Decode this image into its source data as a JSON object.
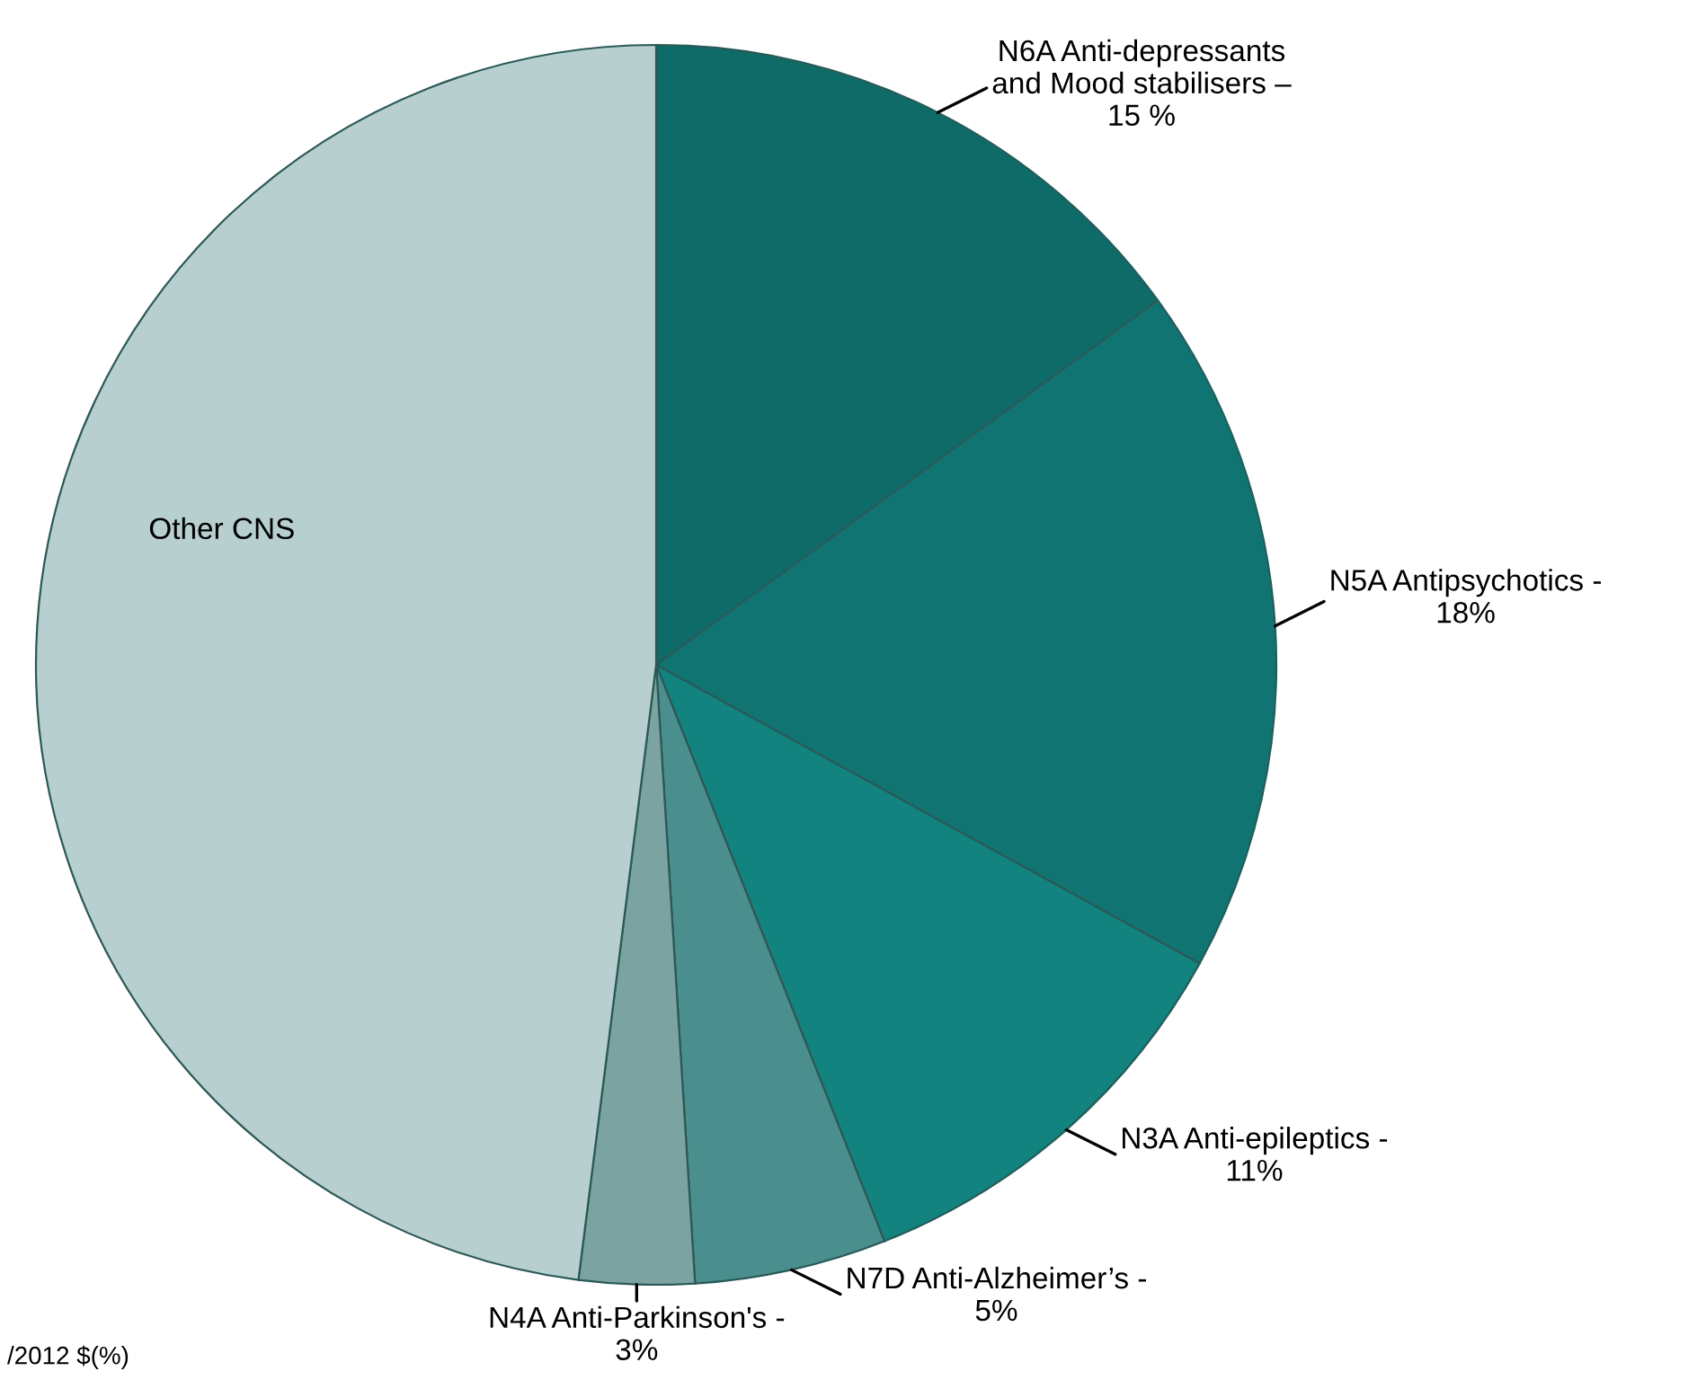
{
  "chart_data": {
    "type": "pie",
    "categories": [
      "N6A Anti-depressants\nand Mood stabilisers –",
      "N5A Antipsychotics -",
      "N3A Anti-epileptics -",
      "N7D Anti-Alzheimer’s -",
      "N4A Anti-Parkinson's -",
      "Other CNS"
    ],
    "values": [
      15,
      18,
      11,
      5,
      3,
      48
    ],
    "value_labels": [
      "15 %",
      "18%",
      "11%",
      "5%",
      "3%",
      null
    ],
    "colors": [
      "#0e6b68",
      "#107572",
      "#13837f",
      "#4a8f8d",
      "#7ba3a2",
      "#b7d0cf"
    ],
    "annotations": [
      "/2012 $(%)"
    ]
  }
}
